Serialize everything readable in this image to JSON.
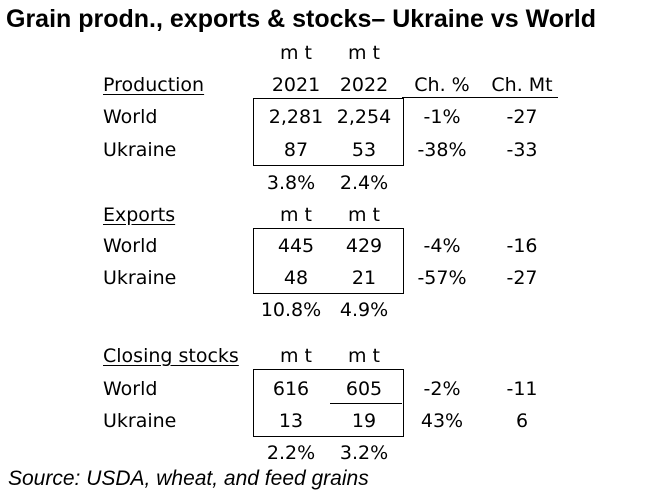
{
  "title": "Grain prodn., exports & stocks– Ukraine vs World",
  "header": {
    "unit_label": "m t",
    "year1": "2021",
    "year2": "2022",
    "change_pct": "Ch. %",
    "change_mt": "Ch. Mt"
  },
  "production": {
    "heading": "Production",
    "rows": [
      {
        "label": "World",
        "v2021": "2,281",
        "v2022": "2,254",
        "pct": "-1%",
        "mt": "-27"
      },
      {
        "label": "Ukraine",
        "v2021": "87",
        "v2022": "53",
        "pct": "-38%",
        "mt": "-33"
      }
    ],
    "share2021": "3.8%",
    "share2022": "2.4%"
  },
  "exports": {
    "heading": "Exports",
    "unit1": "m t",
    "unit2": "m t",
    "rows": [
      {
        "label": "World",
        "v2021": "445",
        "v2022": "429",
        "pct": "-4%",
        "mt": "-16"
      },
      {
        "label": "Ukraine",
        "v2021": "48",
        "v2022": "21",
        "pct": "-57%",
        "mt": "-27"
      }
    ],
    "share2021": "10.8%",
    "share2022": "4.9%"
  },
  "stocks": {
    "heading": "Closing stocks",
    "unit1": "m t",
    "unit2": "m t",
    "rows": [
      {
        "label": "World",
        "v2021": "616",
        "v2022": "605",
        "pct": "-2%",
        "mt": "-11"
      },
      {
        "label": "Ukraine",
        "v2021": "13",
        "v2022": "19",
        "pct": "43%",
        "mt": "6"
      }
    ],
    "share2021": "2.2%",
    "share2022": "3.2%"
  },
  "source": "Source: USDA, wheat, and feed grains"
}
